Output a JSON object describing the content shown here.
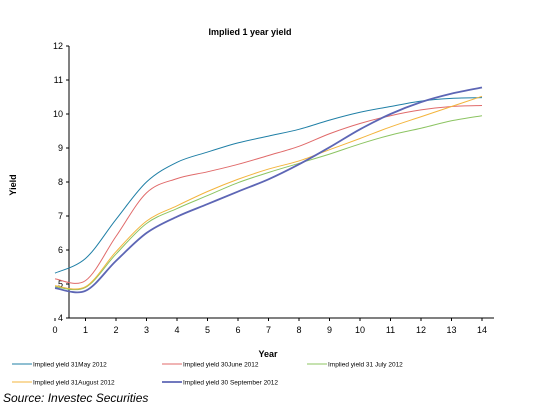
{
  "chart_data": {
    "type": "line",
    "title": "Implied 1 year yield",
    "xlabel": "Year",
    "ylabel": "Yield",
    "x": [
      0,
      1,
      2,
      3,
      4,
      5,
      6,
      7,
      8,
      9,
      10,
      11,
      12,
      13,
      14
    ],
    "xlim": [
      0,
      14
    ],
    "ylim": [
      4,
      12
    ],
    "yticks": [
      4,
      5,
      6,
      7,
      8,
      9,
      10,
      11,
      12
    ],
    "grid": false,
    "legend_position": "bottom",
    "series": [
      {
        "name": "Implied yield 31May 2012",
        "color": "#1f7fa6",
        "values": [
          5.32,
          5.75,
          6.9,
          8.0,
          8.58,
          8.88,
          9.15,
          9.35,
          9.55,
          9.82,
          10.05,
          10.22,
          10.38,
          10.46,
          10.48
        ]
      },
      {
        "name": "Implied yield 30June 2012",
        "color": "#e06a6a",
        "values": [
          5.15,
          5.1,
          6.4,
          7.68,
          8.1,
          8.3,
          8.52,
          8.78,
          9.05,
          9.42,
          9.72,
          9.95,
          10.12,
          10.22,
          10.25
        ]
      },
      {
        "name": "Implied yield 31 July 2012",
        "color": "#8cc462",
        "values": [
          4.92,
          4.9,
          5.88,
          6.78,
          7.22,
          7.6,
          7.98,
          8.28,
          8.55,
          8.82,
          9.12,
          9.38,
          9.58,
          9.8,
          9.95
        ]
      },
      {
        "name": "Implied yield 31August 2012",
        "color": "#f3b43c",
        "values": [
          4.95,
          4.92,
          5.95,
          6.85,
          7.3,
          7.72,
          8.08,
          8.38,
          8.62,
          8.95,
          9.28,
          9.62,
          9.92,
          10.22,
          10.52
        ]
      },
      {
        "name": "Implied yield 30 September 2012",
        "color": "#5d66b5",
        "values": [
          4.88,
          4.8,
          5.68,
          6.5,
          6.98,
          7.35,
          7.72,
          8.08,
          8.52,
          9.02,
          9.55,
          10.0,
          10.35,
          10.6,
          10.78
        ]
      }
    ]
  },
  "source": "Source: Investec Securities"
}
